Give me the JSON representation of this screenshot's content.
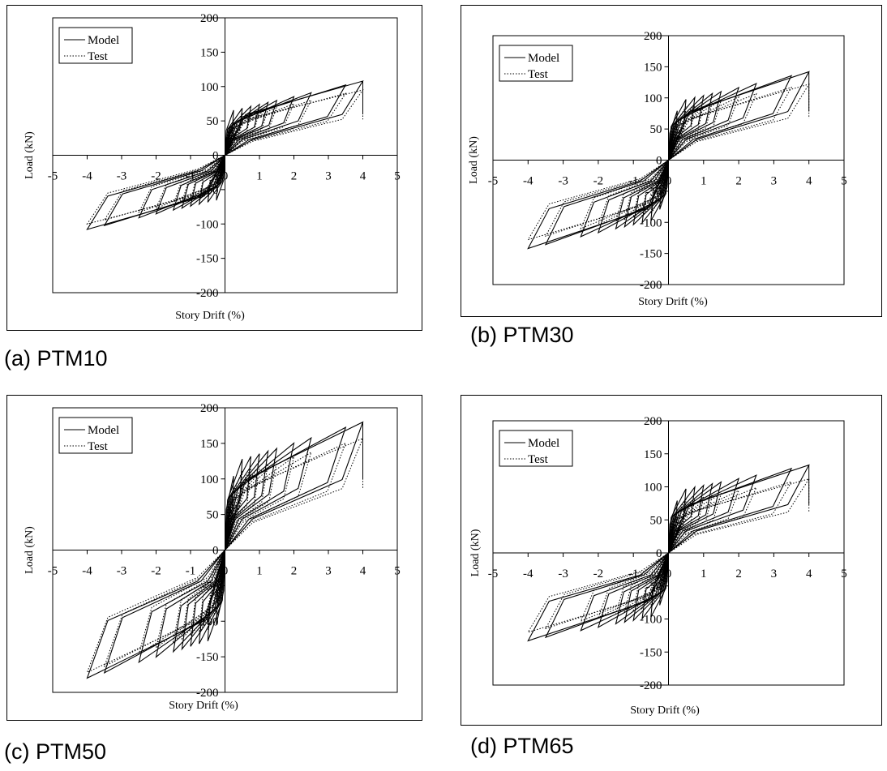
{
  "figure": {
    "charts": [
      {
        "id": "a",
        "caption": "(a) PTM10",
        "xlabel": "Story Drift (%)",
        "ylabel": "Load (kN)",
        "legend": [
          "Model",
          "Test"
        ],
        "xticks": [
          "-5",
          "-4",
          "-3",
          "-2",
          "-1",
          "0",
          "1",
          "2",
          "3",
          "4",
          "5"
        ],
        "yticks": [
          "200",
          "150",
          "100",
          "50",
          "0",
          "-50",
          "-100",
          "-150",
          "-200"
        ]
      },
      {
        "id": "b",
        "caption": "(b) PTM30",
        "xlabel": "Story Drift (%)",
        "ylabel": "Load (kN)",
        "legend": [
          "Model",
          "Test"
        ],
        "xticks": [
          "-5",
          "-4",
          "-3",
          "-2",
          "-1",
          "0",
          "1",
          "2",
          "3",
          "4",
          "5"
        ],
        "yticks": [
          "200",
          "150",
          "100",
          "50",
          "0",
          "-50",
          "-100",
          "-150",
          "-200"
        ]
      },
      {
        "id": "c",
        "caption": "(c) PTM50",
        "xlabel": "Story Drift (%)",
        "ylabel": "Load (kN)",
        "legend": [
          "Model",
          "Test"
        ],
        "xticks": [
          "-5",
          "-4",
          "-3",
          "-2",
          "-1",
          "0",
          "1",
          "2",
          "3",
          "4",
          "5"
        ],
        "yticks": [
          "200",
          "150",
          "100",
          "50",
          "0",
          "-50",
          "-100",
          "-150",
          "-200"
        ]
      },
      {
        "id": "d",
        "caption": "(d) PTM65",
        "xlabel": "Story Drift (%)",
        "ylabel": "Load (kN)",
        "legend": [
          "Model",
          "Test"
        ],
        "xticks": [
          "-5",
          "-4",
          "-3",
          "-2",
          "-1",
          "0",
          "1",
          "2",
          "3",
          "4",
          "5"
        ],
        "yticks": [
          "200",
          "150",
          "100",
          "50",
          "0",
          "-50",
          "-100",
          "-150",
          "-200"
        ]
      }
    ]
  },
  "chart_data": [
    {
      "type": "line",
      "specimen": "PTM10",
      "xlim": [
        -5,
        5
      ],
      "ylim": [
        -200,
        200
      ],
      "grid": false,
      "legend_position": "top-left",
      "cycle_drifts": [
        0.25,
        0.5,
        0.75,
        1.0,
        1.25,
        1.5,
        2.0,
        2.5,
        3.5,
        4.0
      ],
      "series": [
        {
          "name": "Model",
          "style": "solid",
          "yield_drift": 0.2,
          "yield_load": 65,
          "peak_load_pos": 108,
          "peak_load_neg": -108
        },
        {
          "name": "Test",
          "style": "dotted",
          "yield_drift": 0.3,
          "yield_load": 58,
          "peak_load_pos": 95,
          "peak_load_neg": -100
        }
      ]
    },
    {
      "type": "line",
      "specimen": "PTM30",
      "xlim": [
        -5,
        5
      ],
      "ylim": [
        -200,
        200
      ],
      "grid": false,
      "legend_position": "top-left",
      "cycle_drifts": [
        0.25,
        0.5,
        0.75,
        1.0,
        1.25,
        1.5,
        2.0,
        2.5,
        3.5,
        4.0
      ],
      "series": [
        {
          "name": "Model",
          "style": "solid",
          "yield_drift": 0.3,
          "yield_load": 95,
          "peak_load_pos": 142,
          "peak_load_neg": -142
        },
        {
          "name": "Test",
          "style": "dotted",
          "yield_drift": 0.4,
          "yield_load": 85,
          "peak_load_pos": 122,
          "peak_load_neg": -128
        }
      ]
    },
    {
      "type": "line",
      "specimen": "PTM50",
      "xlim": [
        -5,
        5
      ],
      "ylim": [
        -200,
        200
      ],
      "grid": false,
      "legend_position": "top-left",
      "cycle_drifts": [
        0.25,
        0.5,
        0.75,
        1.0,
        1.25,
        1.5,
        2.0,
        2.5,
        3.5,
        4.0
      ],
      "series": [
        {
          "name": "Model",
          "style": "solid",
          "yield_drift": 0.3,
          "yield_load": 125,
          "peak_load_pos": 180,
          "peak_load_neg": -180
        },
        {
          "name": "Test",
          "style": "dotted",
          "yield_drift": 0.4,
          "yield_load": 110,
          "peak_load_pos": 157,
          "peak_load_neg": -172
        }
      ]
    },
    {
      "type": "line",
      "specimen": "PTM65",
      "xlim": [
        -5,
        5
      ],
      "ylim": [
        -200,
        200
      ],
      "grid": false,
      "legend_position": "top-left",
      "cycle_drifts": [
        0.25,
        0.5,
        0.75,
        1.0,
        1.25,
        1.5,
        2.0,
        2.5,
        3.5,
        4.0
      ],
      "series": [
        {
          "name": "Model",
          "style": "solid",
          "yield_drift": 0.3,
          "yield_load": 95,
          "peak_load_pos": 133,
          "peak_load_neg": -133
        },
        {
          "name": "Test",
          "style": "dotted",
          "yield_drift": 0.4,
          "yield_load": 80,
          "peak_load_pos": 112,
          "peak_load_neg": -120
        }
      ]
    }
  ]
}
